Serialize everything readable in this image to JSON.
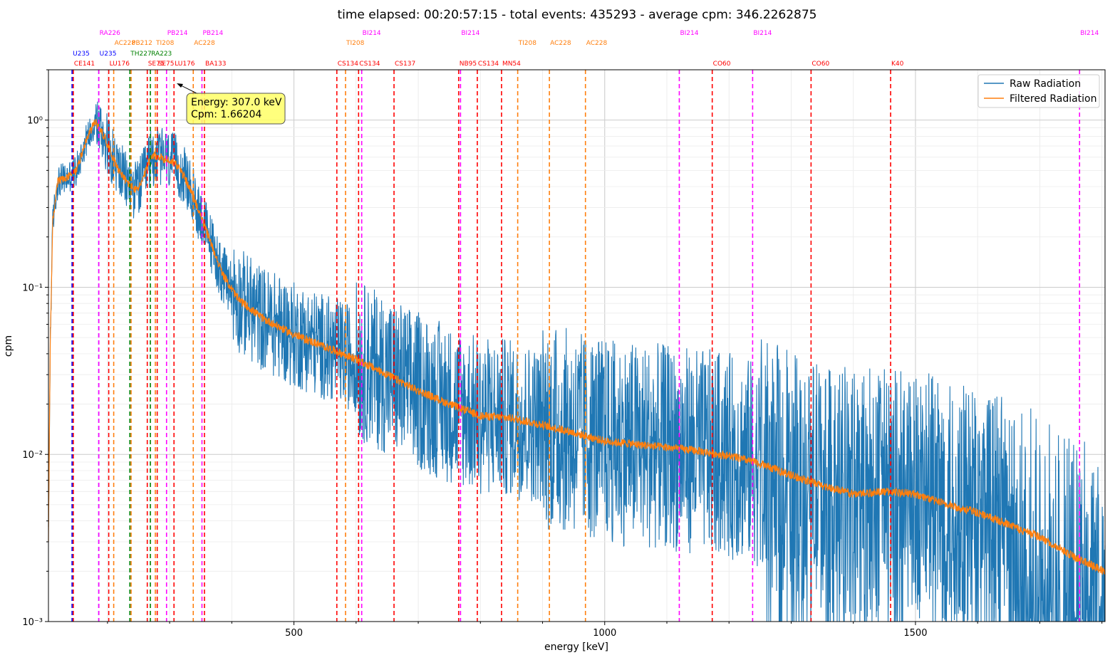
{
  "chart_data": {
    "type": "line",
    "title": "time elapsed: 00:20:57:15  -  total events: 435293  -  average cpm: 346.2262875",
    "xlabel": "energy [keV]",
    "ylabel": "cpm",
    "xlim": [
      105,
      1805
    ],
    "ylim": [
      0.001,
      2.0
    ],
    "yscale": "log",
    "xticks": [
      500,
      1000,
      1500
    ],
    "xtick_labels": [
      "500",
      "1000",
      "1500"
    ],
    "yticks": [
      1,
      0.1,
      0.01,
      0.001
    ],
    "ytick_labels": [
      "10⁰",
      "10⁻¹",
      "10⁻²",
      "10⁻³"
    ],
    "grid": true,
    "legend_placement": "top-right",
    "series": [
      {
        "name": "Raw Radiation",
        "color": "#1f77b4",
        "noisy": true
      },
      {
        "name": "Filtered Radiation",
        "color": "#ff7f0e",
        "noisy": false
      }
    ],
    "baseline": {
      "x": [
        105,
        108,
        112,
        120,
        135,
        150,
        165,
        180,
        195,
        205,
        215,
        230,
        245,
        255,
        262,
        268,
        275,
        285,
        300,
        310,
        325,
        345,
        365,
        385,
        410,
        450,
        500,
        550,
        600,
        650,
        700,
        750,
        800,
        850,
        900,
        950,
        1000,
        1050,
        1100,
        1150,
        1200,
        1250,
        1300,
        1350,
        1400,
        1450,
        1500,
        1550,
        1600,
        1650,
        1700,
        1750,
        1805
      ],
      "y": [
        0.003,
        0.05,
        0.25,
        0.43,
        0.45,
        0.5,
        0.75,
        0.98,
        0.8,
        0.65,
        0.53,
        0.43,
        0.38,
        0.42,
        0.5,
        0.58,
        0.61,
        0.6,
        0.57,
        0.55,
        0.45,
        0.3,
        0.19,
        0.12,
        0.085,
        0.065,
        0.052,
        0.044,
        0.037,
        0.03,
        0.024,
        0.02,
        0.017,
        0.0165,
        0.015,
        0.0135,
        0.012,
        0.0115,
        0.011,
        0.0105,
        0.0098,
        0.0088,
        0.0075,
        0.0065,
        0.0058,
        0.006,
        0.0058,
        0.005,
        0.0045,
        0.0038,
        0.0032,
        0.0025,
        0.002
      ]
    },
    "annotation": {
      "line1": "Energy: 307.0 keV",
      "line2": "Cpm: 1.66204",
      "x": 307.0,
      "y": 1.66204
    },
    "isotope_lines": [
      {
        "label": "U235",
        "energy": 143,
        "color": "#0000ff",
        "row": 2
      },
      {
        "label": "U235",
        "energy": 186,
        "color": "#0000ff",
        "row": 2
      },
      {
        "label": "CE141",
        "energy": 145,
        "color": "#ff0000",
        "row": 3
      },
      {
        "label": "LU176",
        "energy": 202,
        "color": "#ff0000",
        "row": 3
      },
      {
        "label": "SE75",
        "energy": 264,
        "color": "#ff0000",
        "row": 3
      },
      {
        "label": "SE75",
        "energy": 280,
        "color": "#ff0000",
        "row": 3
      },
      {
        "label": "LU176",
        "energy": 307,
        "color": "#ff0000",
        "row": 3
      },
      {
        "label": "BA133",
        "energy": 356,
        "color": "#ff0000",
        "row": 3
      },
      {
        "label": "CS134",
        "energy": 569,
        "color": "#ff0000",
        "row": 3
      },
      {
        "label": "CS134",
        "energy": 604,
        "color": "#ff0000",
        "row": 3
      },
      {
        "label": "CS137",
        "energy": 661,
        "color": "#ff0000",
        "row": 3
      },
      {
        "label": "NB95",
        "energy": 765,
        "color": "#ff0000",
        "row": 3
      },
      {
        "label": "CS134",
        "energy": 795,
        "color": "#ff0000",
        "row": 3
      },
      {
        "label": "MN54",
        "energy": 834,
        "color": "#ff0000",
        "row": 3
      },
      {
        "label": "CO60",
        "energy": 1173,
        "color": "#ff0000",
        "row": 3
      },
      {
        "label": "CO60",
        "energy": 1332,
        "color": "#ff0000",
        "row": 3
      },
      {
        "label": "K40",
        "energy": 1460,
        "color": "#ff0000",
        "row": 3
      },
      {
        "label": "TH227",
        "energy": 236,
        "color": "#008000",
        "row": 2
      },
      {
        "label": "RA223",
        "energy": 269,
        "color": "#008000",
        "row": 2
      },
      {
        "label": "AC228",
        "energy": 210,
        "color": "#ff7f0e",
        "row": 1
      },
      {
        "label": "PB212",
        "energy": 238,
        "color": "#ff7f0e",
        "row": 1
      },
      {
        "label": "TI208",
        "energy": 277,
        "color": "#ff7f0e",
        "row": 1
      },
      {
        "label": "AC228",
        "energy": 338,
        "color": "#ff7f0e",
        "row": 1
      },
      {
        "label": "TI208",
        "energy": 583,
        "color": "#ff7f0e",
        "row": 1
      },
      {
        "label": "TI208",
        "energy": 860,
        "color": "#ff7f0e",
        "row": 1
      },
      {
        "label": "AC228",
        "energy": 911,
        "color": "#ff7f0e",
        "row": 1
      },
      {
        "label": "AC228",
        "energy": 969,
        "color": "#ff7f0e",
        "row": 1
      },
      {
        "label": "RA226",
        "energy": 186,
        "color": "#ff00ff",
        "row": 0
      },
      {
        "label": "PB214",
        "energy": 295,
        "color": "#ff00ff",
        "row": 0
      },
      {
        "label": "PB214",
        "energy": 352,
        "color": "#ff00ff",
        "row": 0
      },
      {
        "label": "BI214",
        "energy": 609,
        "color": "#ff00ff",
        "row": 0
      },
      {
        "label": "BI214",
        "energy": 768,
        "color": "#ff00ff",
        "row": 0
      },
      {
        "label": "BI214",
        "energy": 1120,
        "color": "#ff00ff",
        "row": 0
      },
      {
        "label": "BI214",
        "energy": 1238,
        "color": "#ff00ff",
        "row": 0
      },
      {
        "label": "BI214",
        "energy": 1764,
        "color": "#ff00ff",
        "row": 0
      }
    ]
  }
}
